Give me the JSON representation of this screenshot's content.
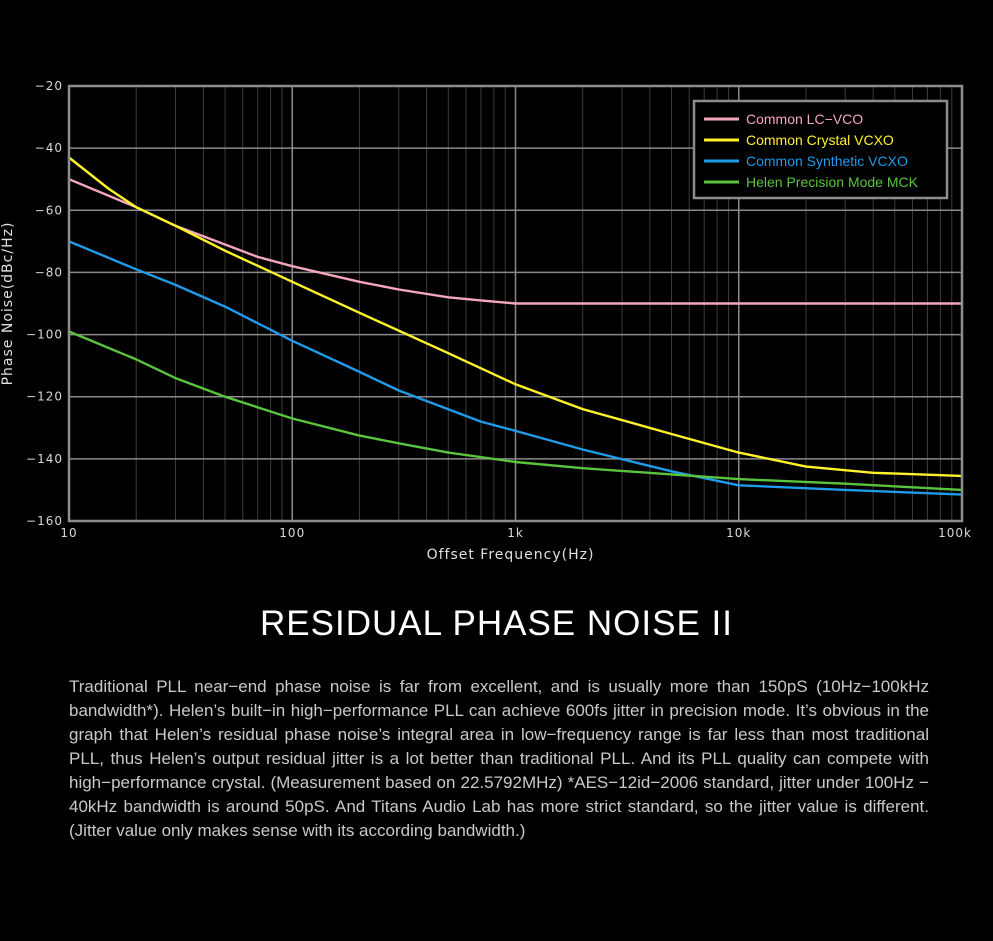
{
  "chart_data": {
    "type": "line",
    "xlabel": "Offset Frequency(Hz)",
    "ylabel": "Phase Noise(dBc/Hz)",
    "x_scale": "log",
    "xlim": [
      10,
      100000
    ],
    "ylim": [
      -160,
      -20
    ],
    "grid": true,
    "legend_position": "top-right",
    "x_ticks": [
      {
        "value": 10,
        "label": "10"
      },
      {
        "value": 100,
        "label": "100"
      },
      {
        "value": 1000,
        "label": "1k"
      },
      {
        "value": 10000,
        "label": "10k"
      },
      {
        "value": 100000,
        "label": "100k"
      }
    ],
    "y_ticks": [
      {
        "value": -20,
        "label": "−20"
      },
      {
        "value": -40,
        "label": "−40"
      },
      {
        "value": -60,
        "label": "−60"
      },
      {
        "value": -80,
        "label": "−80"
      },
      {
        "value": -100,
        "label": "−100"
      },
      {
        "value": -120,
        "label": "−120"
      },
      {
        "value": -140,
        "label": "−140"
      },
      {
        "value": -160,
        "label": "−160"
      }
    ],
    "series": [
      {
        "name": "Common LC−VCO",
        "color": "#f4a6bd",
        "points": [
          [
            10,
            -50
          ],
          [
            20,
            -59
          ],
          [
            30,
            -65
          ],
          [
            50,
            -71
          ],
          [
            70,
            -75
          ],
          [
            100,
            -78
          ],
          [
            200,
            -83
          ],
          [
            300,
            -85.5
          ],
          [
            500,
            -88
          ],
          [
            700,
            -89
          ],
          [
            1000,
            -90
          ],
          [
            10000,
            -90
          ],
          [
            100000,
            -90
          ]
        ]
      },
      {
        "name": "Common Crystal VCXO",
        "color": "#fff22a",
        "points": [
          [
            10,
            -43
          ],
          [
            15,
            -53
          ],
          [
            20,
            -59
          ],
          [
            30,
            -65
          ],
          [
            50,
            -73
          ],
          [
            100,
            -83
          ],
          [
            200,
            -93
          ],
          [
            500,
            -106
          ],
          [
            1000,
            -116
          ],
          [
            2000,
            -124
          ],
          [
            5000,
            -132
          ],
          [
            10000,
            -138
          ],
          [
            20000,
            -142.5
          ],
          [
            40000,
            -144.5
          ],
          [
            100000,
            -145.5
          ]
        ]
      },
      {
        "name": "Common Synthetic VCXO",
        "color": "#1e9be9",
        "points": [
          [
            10,
            -70
          ],
          [
            20,
            -79
          ],
          [
            30,
            -84
          ],
          [
            50,
            -91
          ],
          [
            100,
            -102
          ],
          [
            200,
            -112
          ],
          [
            300,
            -118
          ],
          [
            700,
            -128
          ],
          [
            1000,
            -131
          ],
          [
            2000,
            -137
          ],
          [
            5000,
            -144
          ],
          [
            10000,
            -148.5
          ],
          [
            30000,
            -150
          ],
          [
            100000,
            -151.5
          ]
        ]
      },
      {
        "name": "Helen Precision Mode MCK",
        "color": "#5ac43e",
        "points": [
          [
            10,
            -99
          ],
          [
            20,
            -108
          ],
          [
            30,
            -114
          ],
          [
            50,
            -120
          ],
          [
            100,
            -127
          ],
          [
            200,
            -132.5
          ],
          [
            300,
            -135
          ],
          [
            500,
            -138
          ],
          [
            1000,
            -141
          ],
          [
            2000,
            -143
          ],
          [
            5000,
            -145
          ],
          [
            10000,
            -146.5
          ],
          [
            30000,
            -148
          ],
          [
            100000,
            -150
          ]
        ]
      }
    ]
  },
  "section_title": "RESIDUAL PHASE NOISE II",
  "description": "Traditional PLL near−end phase noise is far from excellent, and is usually more than 150pS (10Hz−100kHz bandwidth*). Helen’s built−in high−performance PLL can achieve 600fs jitter in precision mode. It’s obvious in the graph that Helen’s residual phase noise’s integral area in low−frequency range is far less than most traditional PLL, thus Helen’s output residual jitter is a lot better than traditional PLL. And its PLL quality can compete with high−performance crystal. (Measurement based on 22.5792MHz) *AES−12id−2006 standard, jitter under 100Hz − 40kHz bandwidth is around 50pS. And Titans Audio Lab has more strict standard, so the jitter value is different. (Jitter value only makes sense with its according bandwidth.)"
}
